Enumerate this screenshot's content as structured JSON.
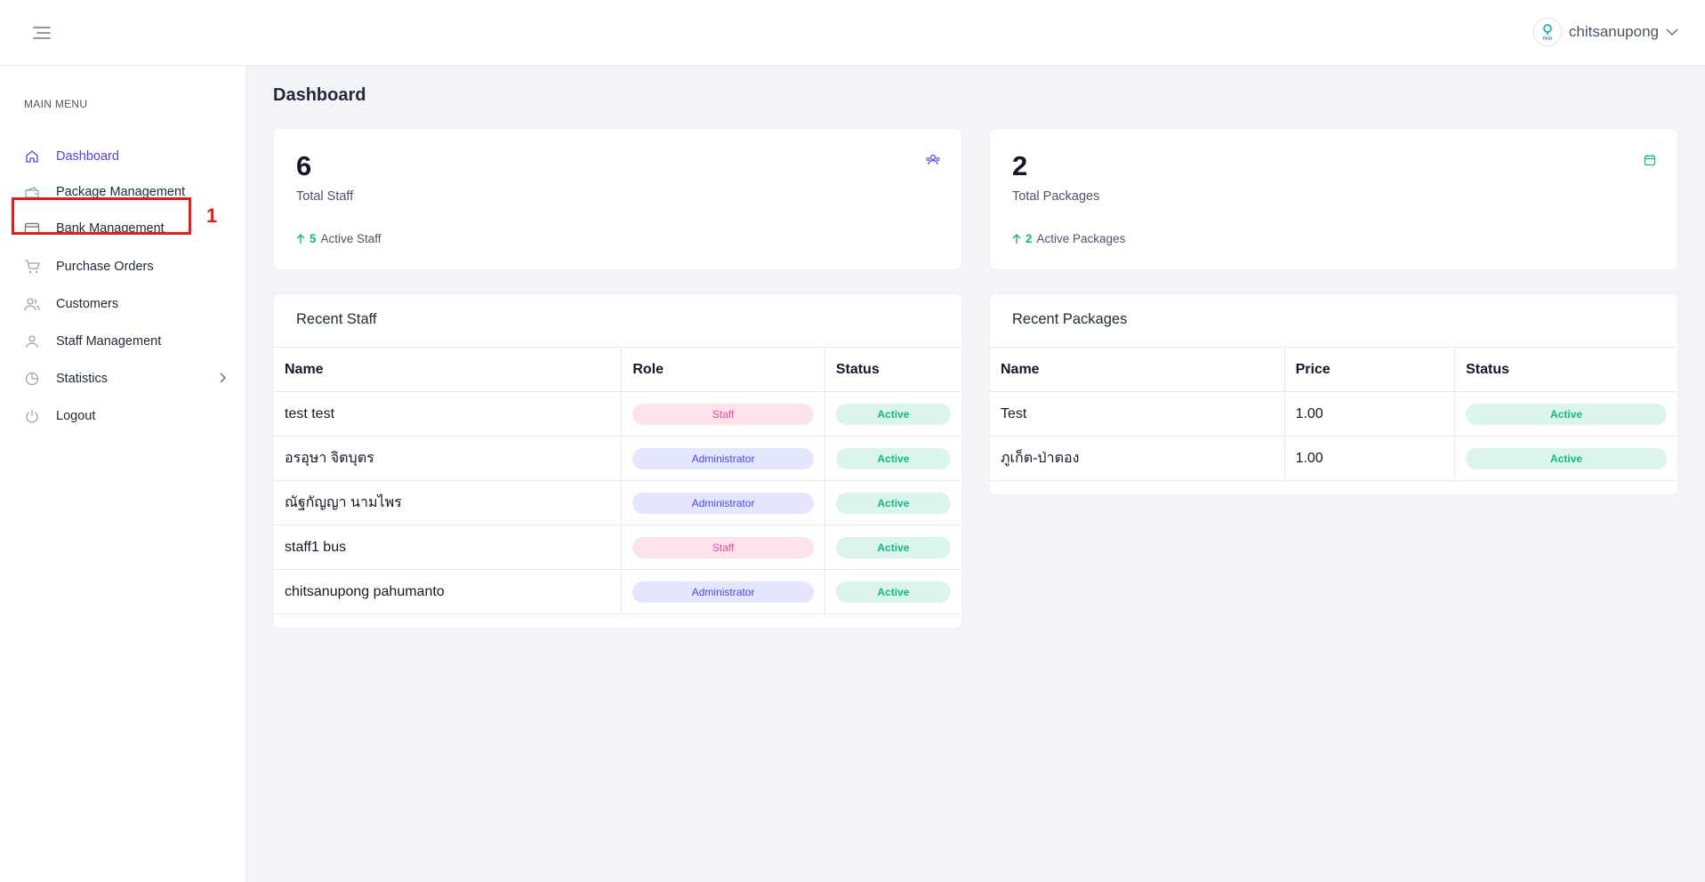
{
  "header": {
    "username": "chitsanupong",
    "logo_text": "PAIR"
  },
  "sidebar": {
    "heading": "MAIN MENU",
    "items": [
      {
        "label": "Dashboard",
        "icon": "home-icon",
        "active": true
      },
      {
        "label": "Package Management",
        "icon": "wallet-icon"
      },
      {
        "label": "Bank Management",
        "icon": "credit-card-icon"
      },
      {
        "label": "Purchase Orders",
        "icon": "cart-icon"
      },
      {
        "label": "Customers",
        "icon": "users-icon"
      },
      {
        "label": "Staff Management",
        "icon": "user-icon"
      },
      {
        "label": "Statistics",
        "icon": "pie-chart-icon",
        "has_submenu": true
      },
      {
        "label": "Logout",
        "icon": "power-icon"
      }
    ]
  },
  "annotation": {
    "label": "1",
    "color": "#e11d1d"
  },
  "page": {
    "title": "Dashboard"
  },
  "stats": {
    "staff": {
      "value": "6",
      "label": "Total Staff",
      "active_count": "5",
      "active_label": "Active Staff",
      "icon": "team-icon"
    },
    "packages": {
      "value": "2",
      "label": "Total Packages",
      "active_count": "2",
      "active_label": "Active Packages",
      "icon": "package-icon"
    }
  },
  "recent_staff": {
    "title": "Recent Staff",
    "columns": [
      "Name",
      "Role",
      "Status"
    ],
    "rows": [
      {
        "name": "test test",
        "role": "Staff",
        "status": "Active"
      },
      {
        "name": "อรอุษา จิตบุตร",
        "role": "Administrator",
        "status": "Active"
      },
      {
        "name": "ณัฐกัญญา นามไพร",
        "role": "Administrator",
        "status": "Active"
      },
      {
        "name": "staff1 bus",
        "role": "Staff",
        "status": "Active"
      },
      {
        "name": "chitsanupong pahumanto",
        "role": "Administrator",
        "status": "Active"
      }
    ]
  },
  "recent_packages": {
    "title": "Recent Packages",
    "columns": [
      "Name",
      "Price",
      "Status"
    ],
    "rows": [
      {
        "name": "Test",
        "price": "1.00",
        "status": "Active"
      },
      {
        "name": "ภูเก็ต-ป่าตอง",
        "price": "1.00",
        "status": "Active"
      }
    ]
  },
  "colors": {
    "accent": "#4f46e5",
    "success": "#10b981",
    "staff_badge": "#ec4899"
  }
}
